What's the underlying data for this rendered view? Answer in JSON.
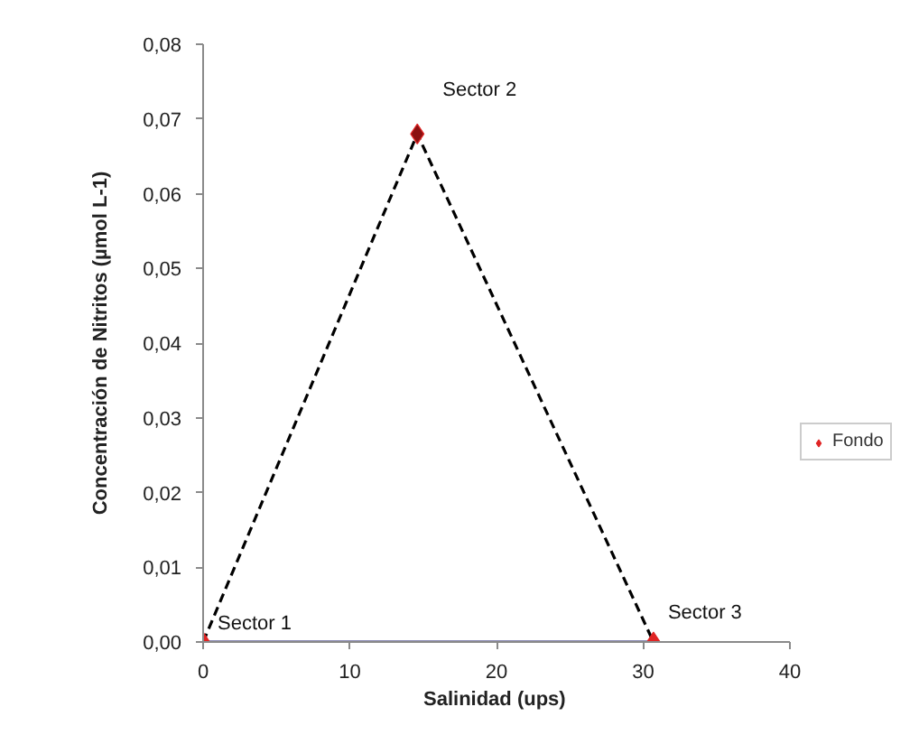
{
  "chart_data": {
    "type": "scatter",
    "xlabel": "Salinidad (ups)",
    "ylabel": "Concentración de Nitritos (µmol L-1)",
    "xlim": [
      0,
      40
    ],
    "xticks": [
      0,
      10,
      20,
      30,
      40
    ],
    "ylim": [
      0,
      0.08
    ],
    "yticks": [
      {
        "value": 0,
        "label": "0,00"
      },
      {
        "value": 0.01,
        "label": "0,01"
      },
      {
        "value": 0.02,
        "label": "0,02"
      },
      {
        "value": 0.03,
        "label": "0,03"
      },
      {
        "value": 0.04,
        "label": "0,04"
      },
      {
        "value": 0.05,
        "label": "0,05"
      },
      {
        "value": 0.06,
        "label": "0,06"
      },
      {
        "value": 0.07,
        "label": "0,07"
      },
      {
        "value": 0.08,
        "label": "0,08"
      }
    ],
    "grid": false,
    "legend": "right",
    "series": [
      {
        "type": "line",
        "color": "#1c1c6e",
        "x": [
          0,
          30.7
        ],
        "values": [
          0,
          0
        ],
        "marker": "none",
        "line_style": "solid"
      },
      {
        "type": "line",
        "color": "#000000",
        "x": [
          0,
          14.6,
          30.7
        ],
        "values": [
          0,
          0.068,
          0
        ],
        "marker": "none",
        "line_style": "dashed"
      },
      {
        "name": "Fondo",
        "color": "#e02424",
        "colors": [
          "#e02424",
          "#8b1010",
          "#e02424"
        ],
        "x": [
          0,
          14.6,
          30.7
        ],
        "values": [
          0,
          0.068,
          0
        ],
        "marker": "diamond"
      }
    ],
    "annotations": [
      {
        "text": "Sector 1",
        "x": 0,
        "y": 0
      },
      {
        "text": "Sector 2",
        "x": 14.6,
        "y": 0.068
      },
      {
        "text": "Sector 3",
        "x": 30.7,
        "y": 0
      }
    ]
  }
}
